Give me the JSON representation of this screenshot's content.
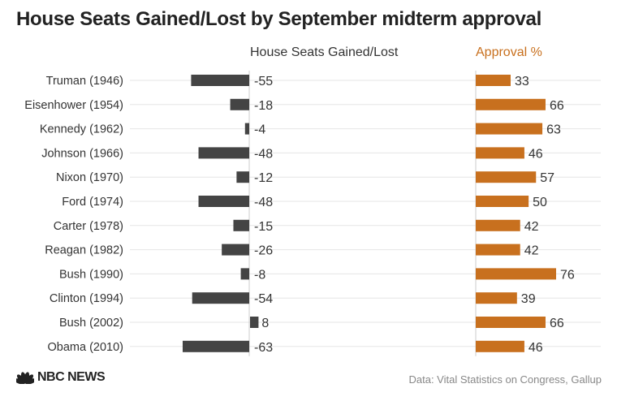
{
  "title": "House Seats Gained/Lost by September midterm approval",
  "source": "Data: Vital Statistics on Congress, Gallup",
  "logo_text": "NBC NEWS",
  "colors": {
    "seats": "#444444",
    "approval": "#c8701e",
    "grid": "#e6e6e6",
    "axis": "#cccccc",
    "text": "#333333"
  },
  "chart_data": {
    "type": "bar",
    "layout": "paired-horizontal-bars",
    "categories": [
      "Truman (1946)",
      "Eisenhower (1954)",
      "Kennedy (1962)",
      "Johnson (1966)",
      "Nixon (1970)",
      "Ford (1974)",
      "Carter (1978)",
      "Reagan (1982)",
      "Bush (1990)",
      "Clinton (1994)",
      "Bush (2002)",
      "Obama (2010)"
    ],
    "series": [
      {
        "name": "House Seats Gained/Lost",
        "color": "#444444",
        "values": [
          -55,
          -18,
          -4,
          -48,
          -12,
          -48,
          -15,
          -26,
          -8,
          -54,
          8,
          -63
        ]
      },
      {
        "name": "Approval %",
        "color": "#c8701e",
        "values": [
          33,
          66,
          63,
          46,
          57,
          50,
          42,
          42,
          76,
          39,
          66,
          46
        ]
      }
    ]
  }
}
